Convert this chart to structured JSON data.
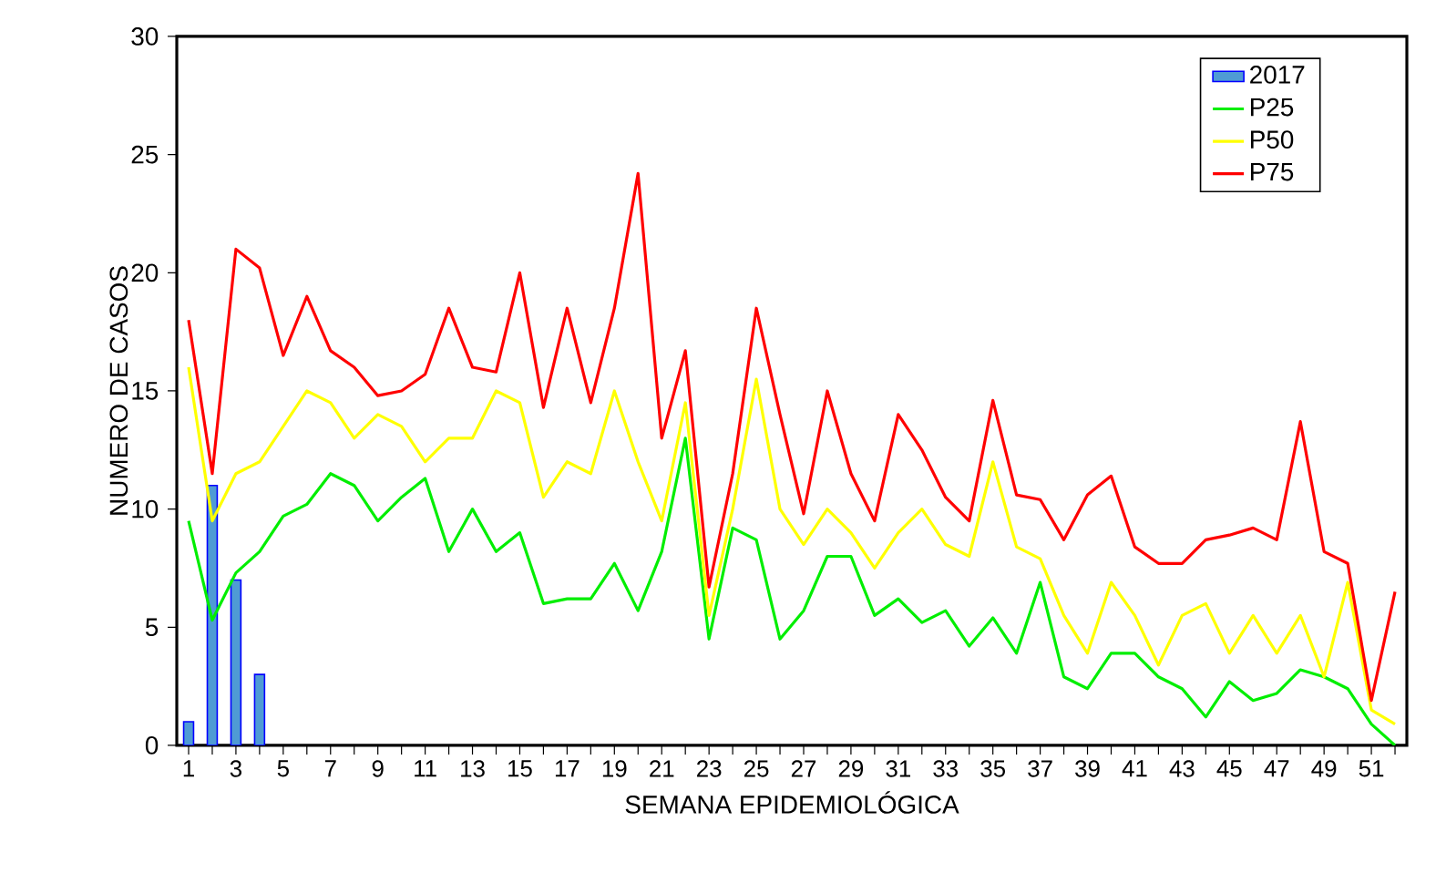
{
  "chart_data": {
    "type": "line",
    "xlabel": "SEMANA EPIDEMIOLÓGICA",
    "ylabel": "NUMERO DE CASOS",
    "categories": [
      "1",
      null,
      "3",
      null,
      "5",
      null,
      "7",
      null,
      "9",
      null,
      "11",
      null,
      "13",
      null,
      "15",
      null,
      "17",
      null,
      "19",
      null,
      "21",
      null,
      "23",
      null,
      "25",
      null,
      "27",
      null,
      "29",
      null,
      "31",
      null,
      "33",
      null,
      "35",
      null,
      "37",
      null,
      "39",
      null,
      "41",
      null,
      "43",
      null,
      "45",
      null,
      "47",
      null,
      "49",
      null,
      "51",
      null
    ],
    "ylim": [
      0,
      30
    ],
    "yticks": [
      0,
      5,
      10,
      15,
      20,
      25,
      30
    ],
    "legend": "top right",
    "grid": false,
    "series": [
      {
        "name": "2017",
        "type": "bar",
        "color": "#4f9bd4",
        "values": [
          1,
          11,
          7,
          3,
          null,
          null,
          null,
          null,
          null,
          null,
          null,
          null,
          null,
          null,
          null,
          null,
          null,
          null,
          null,
          null,
          null,
          null,
          null,
          null,
          null,
          null,
          null,
          null,
          null,
          null,
          null,
          null,
          null,
          null,
          null,
          null,
          null,
          null,
          null,
          null,
          null,
          null,
          null,
          null,
          null,
          null,
          null,
          null,
          null,
          null,
          null,
          null
        ]
      },
      {
        "name": "P25",
        "color": "#00ee00",
        "values": [
          9.5,
          5.3,
          7.3,
          8.2,
          9.7,
          10.2,
          11.5,
          11,
          9.5,
          10.5,
          11.3,
          8.2,
          10,
          8.2,
          9,
          6,
          6.2,
          6.2,
          7.7,
          5.7,
          8.2,
          13,
          4.5,
          9.2,
          8.7,
          4.5,
          5.7,
          8,
          8,
          5.5,
          6.2,
          5.2,
          5.7,
          4.2,
          5.4,
          3.9,
          6.9,
          2.9,
          2.4,
          3.9,
          3.9,
          2.9,
          2.4,
          1.2,
          2.7,
          1.9,
          2.2,
          3.2,
          2.9,
          2.4,
          0.9,
          0
        ]
      },
      {
        "name": "P50",
        "color": "#ffff00",
        "values": [
          16,
          9.5,
          11.5,
          12,
          13.5,
          15,
          14.5,
          13,
          14,
          13.5,
          12,
          13,
          13,
          15,
          14.5,
          10.5,
          12,
          11.5,
          15,
          12,
          9.5,
          14.5,
          5.5,
          10,
          15.5,
          10,
          8.5,
          10,
          9,
          7.5,
          9,
          10,
          8.5,
          8,
          12,
          8.4,
          7.9,
          5.5,
          3.9,
          6.9,
          5.5,
          3.4,
          5.5,
          6,
          3.9,
          5.5,
          3.9,
          5.5,
          2.9,
          6.9,
          1.5,
          0.9
        ]
      },
      {
        "name": "P75",
        "color": "#ff0000",
        "values": [
          18,
          11.5,
          21,
          20.2,
          16.5,
          19,
          16.7,
          16,
          14.8,
          15,
          15.7,
          18.5,
          16,
          15.8,
          20,
          14.3,
          18.5,
          14.5,
          18.5,
          24.2,
          13,
          16.7,
          6.7,
          11.5,
          18.5,
          14,
          9.8,
          15,
          11.5,
          9.5,
          14,
          12.5,
          10.5,
          9.5,
          14.6,
          10.6,
          10.4,
          8.7,
          10.6,
          11.4,
          8.4,
          7.7,
          7.7,
          8.7,
          8.9,
          9.2,
          8.7,
          13.7,
          8.2,
          7.7,
          1.9,
          6.5
        ]
      }
    ]
  }
}
